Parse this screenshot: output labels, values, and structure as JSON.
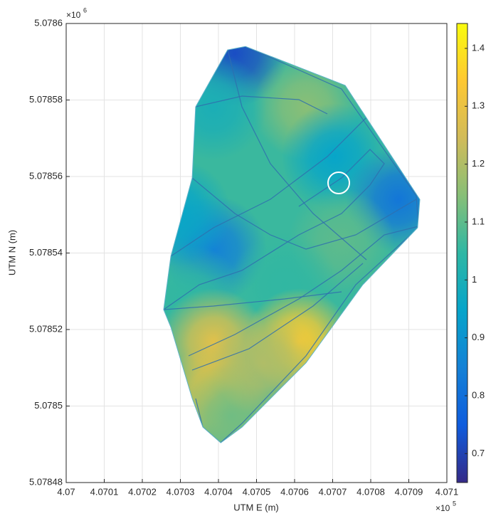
{
  "chart_data": {
    "type": "heatmap",
    "xlabel": "UTM E (m)",
    "ylabel": "UTM N (m)",
    "x_exponent": {
      "base": "×10",
      "power": "5"
    },
    "y_exponent": {
      "base": "×10",
      "power": "6"
    },
    "xlim": [
      407000,
      407100
    ],
    "xticks": [
      {
        "value": 407000,
        "label": "4.07"
      },
      {
        "value": 407010,
        "label": "4.0701"
      },
      {
        "value": 407020,
        "label": "4.0702"
      },
      {
        "value": 407030,
        "label": "4.0703"
      },
      {
        "value": 407040,
        "label": "4.0704"
      },
      {
        "value": 407050,
        "label": "4.0705"
      },
      {
        "value": 407060,
        "label": "4.0706"
      },
      {
        "value": 407070,
        "label": "4.0707"
      },
      {
        "value": 407080,
        "label": "4.0708"
      },
      {
        "value": 407090,
        "label": "4.0709"
      },
      {
        "value": 407100,
        "label": "4.071"
      }
    ],
    "ylim": [
      5078480,
      5078600
    ],
    "yticks": [
      {
        "value": 5078480,
        "label": "5.07848"
      },
      {
        "value": 5078500,
        "label": "5.0785"
      },
      {
        "value": 5078520,
        "label": "5.07852"
      },
      {
        "value": 5078540,
        "label": "5.07854"
      },
      {
        "value": 5078560,
        "label": "5.07856"
      },
      {
        "value": 5078580,
        "label": "5.07858"
      },
      {
        "value": 5078600,
        "label": "5.0786"
      }
    ],
    "grid": true,
    "boundary": {
      "x": [
        407042.4,
        407047.1,
        407073.3,
        407092.9,
        407092.3,
        407077.9,
        407063.0,
        407046.2,
        407040.6,
        407035.9,
        407033.1,
        407027.5,
        407025.6,
        407027.5,
        407033.1,
        407034.0
      ],
      "y": [
        5078593.1,
        5078594.0,
        5078583.8,
        5078554.0,
        5078546.6,
        5078531.7,
        5078511.3,
        5078494.5,
        5078490.4,
        5078494.5,
        5078502.0,
        5078520.6,
        5078525.2,
        5078539.2,
        5078559.6,
        5078578.2
      ]
    },
    "field": {
      "x": [
        407044.3,
        407063.0,
        407038.7,
        407070.5,
        407038.7,
        407087.3,
        407072.3,
        407057.4,
        407033.1,
        407038.7,
        407061.1,
        407038.7,
        407043.4,
        407051.8,
        407029.3
      ],
      "y": [
        5078592.2,
        5078578.2,
        5078578.2,
        5078565.2,
        5078541.0,
        5078554.0,
        5078542.9,
        5078531.7,
        5078528.0,
        5078516.8,
        5078516.8,
        5078502.0,
        5078497.3,
        5078511.3,
        5078550.3
      ],
      "values": [
        0.72,
        1.15,
        1.0,
        0.95,
        0.85,
        0.82,
        1.1,
        1.05,
        1.05,
        1.28,
        1.35,
        1.3,
        1.12,
        1.2,
        0.95
      ]
    },
    "colormap": [
      "#352a87",
      "#0f5cdd",
      "#1481d6",
      "#06a4ca",
      "#2eb7a4",
      "#87bf77",
      "#d1bb59",
      "#fec832",
      "#f9fb0e"
    ],
    "colorbar": {
      "lim": [
        0.65,
        1.443
      ],
      "ticks": [
        0.7,
        0.8,
        0.9,
        1,
        1.1,
        1.2,
        1.3,
        1.4
      ]
    }
  }
}
